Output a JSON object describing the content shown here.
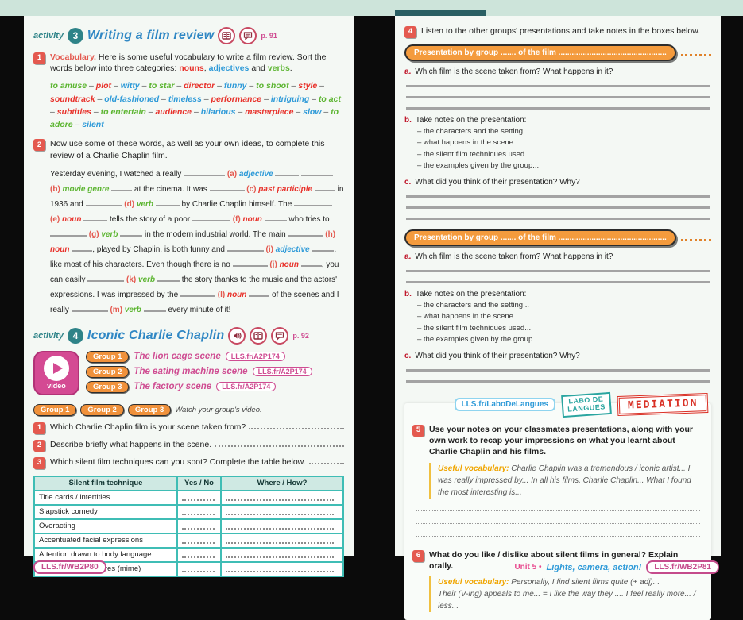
{
  "chrome": {
    "footer_left_link": "LLS.fr/WB2P80",
    "footer_right_link": "LLS.fr/WB2P81",
    "unit_label": "Unit 5 •",
    "unit_title": "Lights, camera, action!"
  },
  "left": {
    "activity3": {
      "label": "activity",
      "num": "3",
      "title": "Writing a film review",
      "page_ref": "p. 91",
      "step1": {
        "num": "1",
        "lead": "Vocabulary.",
        "text": "Here is some useful vocabulary to write a film review. Sort the words below into three categories:",
        "cat1": "nouns",
        "sep1": ", ",
        "cat2": "adjectives",
        "sep2": " and ",
        "cat3": "verbs",
        "end": ".",
        "words": [
          {
            "w": "to amuse",
            "c": "green"
          },
          {
            "w": "plot",
            "c": "red"
          },
          {
            "w": "witty",
            "c": "blue"
          },
          {
            "w": "to star",
            "c": "green"
          },
          {
            "w": "director",
            "c": "red"
          },
          {
            "w": "funny",
            "c": "blue"
          },
          {
            "w": "to shoot",
            "c": "green"
          },
          {
            "w": "style",
            "c": "red"
          },
          {
            "w": "soundtrack",
            "c": "red"
          },
          {
            "w": "old-fashioned",
            "c": "blue"
          },
          {
            "w": "timeless",
            "c": "blue"
          },
          {
            "w": "performance",
            "c": "red"
          },
          {
            "w": "intriguing",
            "c": "blue"
          },
          {
            "w": "to act",
            "c": "green"
          },
          {
            "w": "subtitles",
            "c": "red"
          },
          {
            "w": "to entertain",
            "c": "green"
          },
          {
            "w": "audience",
            "c": "red"
          },
          {
            "w": "hilarious",
            "c": "blue"
          },
          {
            "w": "masterpiece",
            "c": "red"
          },
          {
            "w": "slow",
            "c": "blue"
          },
          {
            "w": "to adore",
            "c": "green"
          },
          {
            "w": "silent",
            "c": "blue"
          }
        ]
      },
      "step2": {
        "num": "2",
        "text": "Now use some of these words, as well as your own ideas, to complete this review of a Charlie Chaplin film.",
        "segments": [
          {
            "text": "Yesterday evening, I watched a really "
          },
          {
            "l": "a",
            "hint": "adjective",
            "cat": "adj",
            "pre": 52,
            "post": 30
          },
          {
            "text": " "
          },
          {
            "l": "b",
            "hint": "movie genre",
            "cat": "genre",
            "pre": 40,
            "post": 26
          },
          {
            "text": " at the cinema. It was "
          },
          {
            "l": "c",
            "hint": "past participle",
            "cat": "pp",
            "pre": 44,
            "post": 26
          },
          {
            "text": " in 1936 and "
          },
          {
            "l": "d",
            "hint": "verb",
            "cat": "verb",
            "pre": 46,
            "post": 30
          },
          {
            "text": " by Charlie Chaplin himself. The "
          },
          {
            "l": "e",
            "hint": "noun",
            "cat": "noun",
            "pre": 48,
            "post": 30
          },
          {
            "text": " tells the story of a poor "
          },
          {
            "l": "f",
            "hint": "noun",
            "cat": "noun",
            "pre": 48,
            "post": 28
          },
          {
            "text": " who tries to "
          },
          {
            "l": "g",
            "hint": "verb",
            "cat": "verb",
            "pre": 46,
            "post": 28
          },
          {
            "text": " in the modern industrial world. The main "
          },
          {
            "l": "h",
            "hint": "noun",
            "cat": "noun",
            "pre": 44,
            "post": 26
          },
          {
            "text": ", played by Chaplin, is both funny and "
          },
          {
            "l": "i",
            "hint": "adjective",
            "cat": "adj",
            "pre": 46,
            "post": 28
          },
          {
            "text": ", like most of his characters. Even though there is no "
          },
          {
            "l": "j",
            "hint": "noun",
            "cat": "noun",
            "pre": 44,
            "post": 26
          },
          {
            "text": ", you can easily "
          },
          {
            "l": "k",
            "hint": "verb",
            "cat": "verb",
            "pre": 46,
            "post": 28
          },
          {
            "text": " the story thanks to the music and the actors' expressions. I was impressed by the "
          },
          {
            "l": "l",
            "hint": "noun",
            "cat": "noun",
            "pre": 44,
            "post": 26
          },
          {
            "text": " of the scenes and I really "
          },
          {
            "l": "m",
            "hint": "verb",
            "cat": "verb",
            "pre": 46,
            "post": 28
          },
          {
            "text": " every minute of it!"
          }
        ]
      }
    },
    "activity4": {
      "label": "activity",
      "num": "4",
      "title": "Iconic Charlie Chaplin",
      "page_ref": "p. 92",
      "video_label": "video",
      "groups": [
        {
          "chip": "Group 1",
          "scene": "The lion cage scene",
          "link": "LLS.fr/A2P174"
        },
        {
          "chip": "Group 2",
          "scene": "The eating machine scene",
          "link": "LLS.fr/A2P174"
        },
        {
          "chip": "Group 3",
          "scene": "The factory scene",
          "link": "LLS.fr/A2P174"
        }
      ],
      "chips": [
        "Group 1",
        "Group 2",
        "Group 3"
      ],
      "chips_caption": "Watch your group's video.",
      "steps": [
        {
          "num": "1",
          "text": "Which Charlie Chaplin film is your scene taken from?"
        },
        {
          "num": "2",
          "text": "Describe briefly what happens in the scene."
        },
        {
          "num": "3",
          "text": "Which silent film techniques can you spot? Complete the table below."
        }
      ],
      "table": {
        "headers": [
          "Silent film technique",
          "Yes / No",
          "Where / How?"
        ],
        "rows": [
          {
            "technique": "Title cards / intertitles"
          },
          {
            "technique": "Slapstick comedy"
          },
          {
            "technique": "Overacting"
          },
          {
            "technique": "Accentuated facial expressions"
          },
          {
            "technique": "Attention drawn to body language"
          },
          {
            "technique": "Melodramatic gestures (mime)"
          }
        ]
      }
    }
  },
  "right": {
    "step4": {
      "num": "4",
      "text": "Listen to the other groups' presentations and take notes in the boxes below."
    },
    "presentations": [
      {
        "banner": "Presentation by group ....... of the film .................................................",
        "a_label": "a.",
        "a_text": "Which film is the scene taken from? What happens in it?",
        "b_label": "b.",
        "b_text": "Take notes on the presentation:",
        "b_lines": [
          "– the characters and the setting...",
          "– what happens in the scene...",
          "– the silent film techniques used...",
          "– the examples given by the group..."
        ],
        "c_label": "c.",
        "c_text": "What did you think of their presentation? Why?"
      },
      {
        "banner": "Presentation by group ....... of the film .................................................",
        "a_label": "a.",
        "a_text": "Which film is the scene taken from? What happens in it?",
        "b_label": "b.",
        "b_text": "Take notes on the presentation:",
        "b_lines": [
          "– the characters and the setting...",
          "– what happens in the scene...",
          "– the silent film techniques used...",
          "– the examples given by the group..."
        ],
        "c_label": "c.",
        "c_text": "What did you think of their presentation? Why?"
      }
    ],
    "badges": {
      "labo_link": "LLS.fr/LaboDeLangues",
      "labo_line1": "LABO DE",
      "labo_line2": "LANGUES",
      "mediation": "MEDIATION"
    },
    "step5": {
      "num": "5",
      "text": "Use your notes on your classmates presentations, along with your own work to recap your impressions on what you learnt about Charlie Chaplin and his films.",
      "uv_label": "Useful vocabulary:",
      "uv_text": "Charlie Chaplin was a tremendous / iconic artist... I was really impressed by... In all his films, Charlie Chaplin... What I found the most interesting is..."
    },
    "step6": {
      "num": "6",
      "text": "What do you like / dislike about silent films in general? Explain orally.",
      "uv_label": "Useful vocabulary:",
      "uv_line1": "Personally, I find silent films quite (+ adj)...",
      "uv_line2": "Their (V-ing) appeals to me... =  I like the way they .... I feel really more... / less..."
    }
  }
}
